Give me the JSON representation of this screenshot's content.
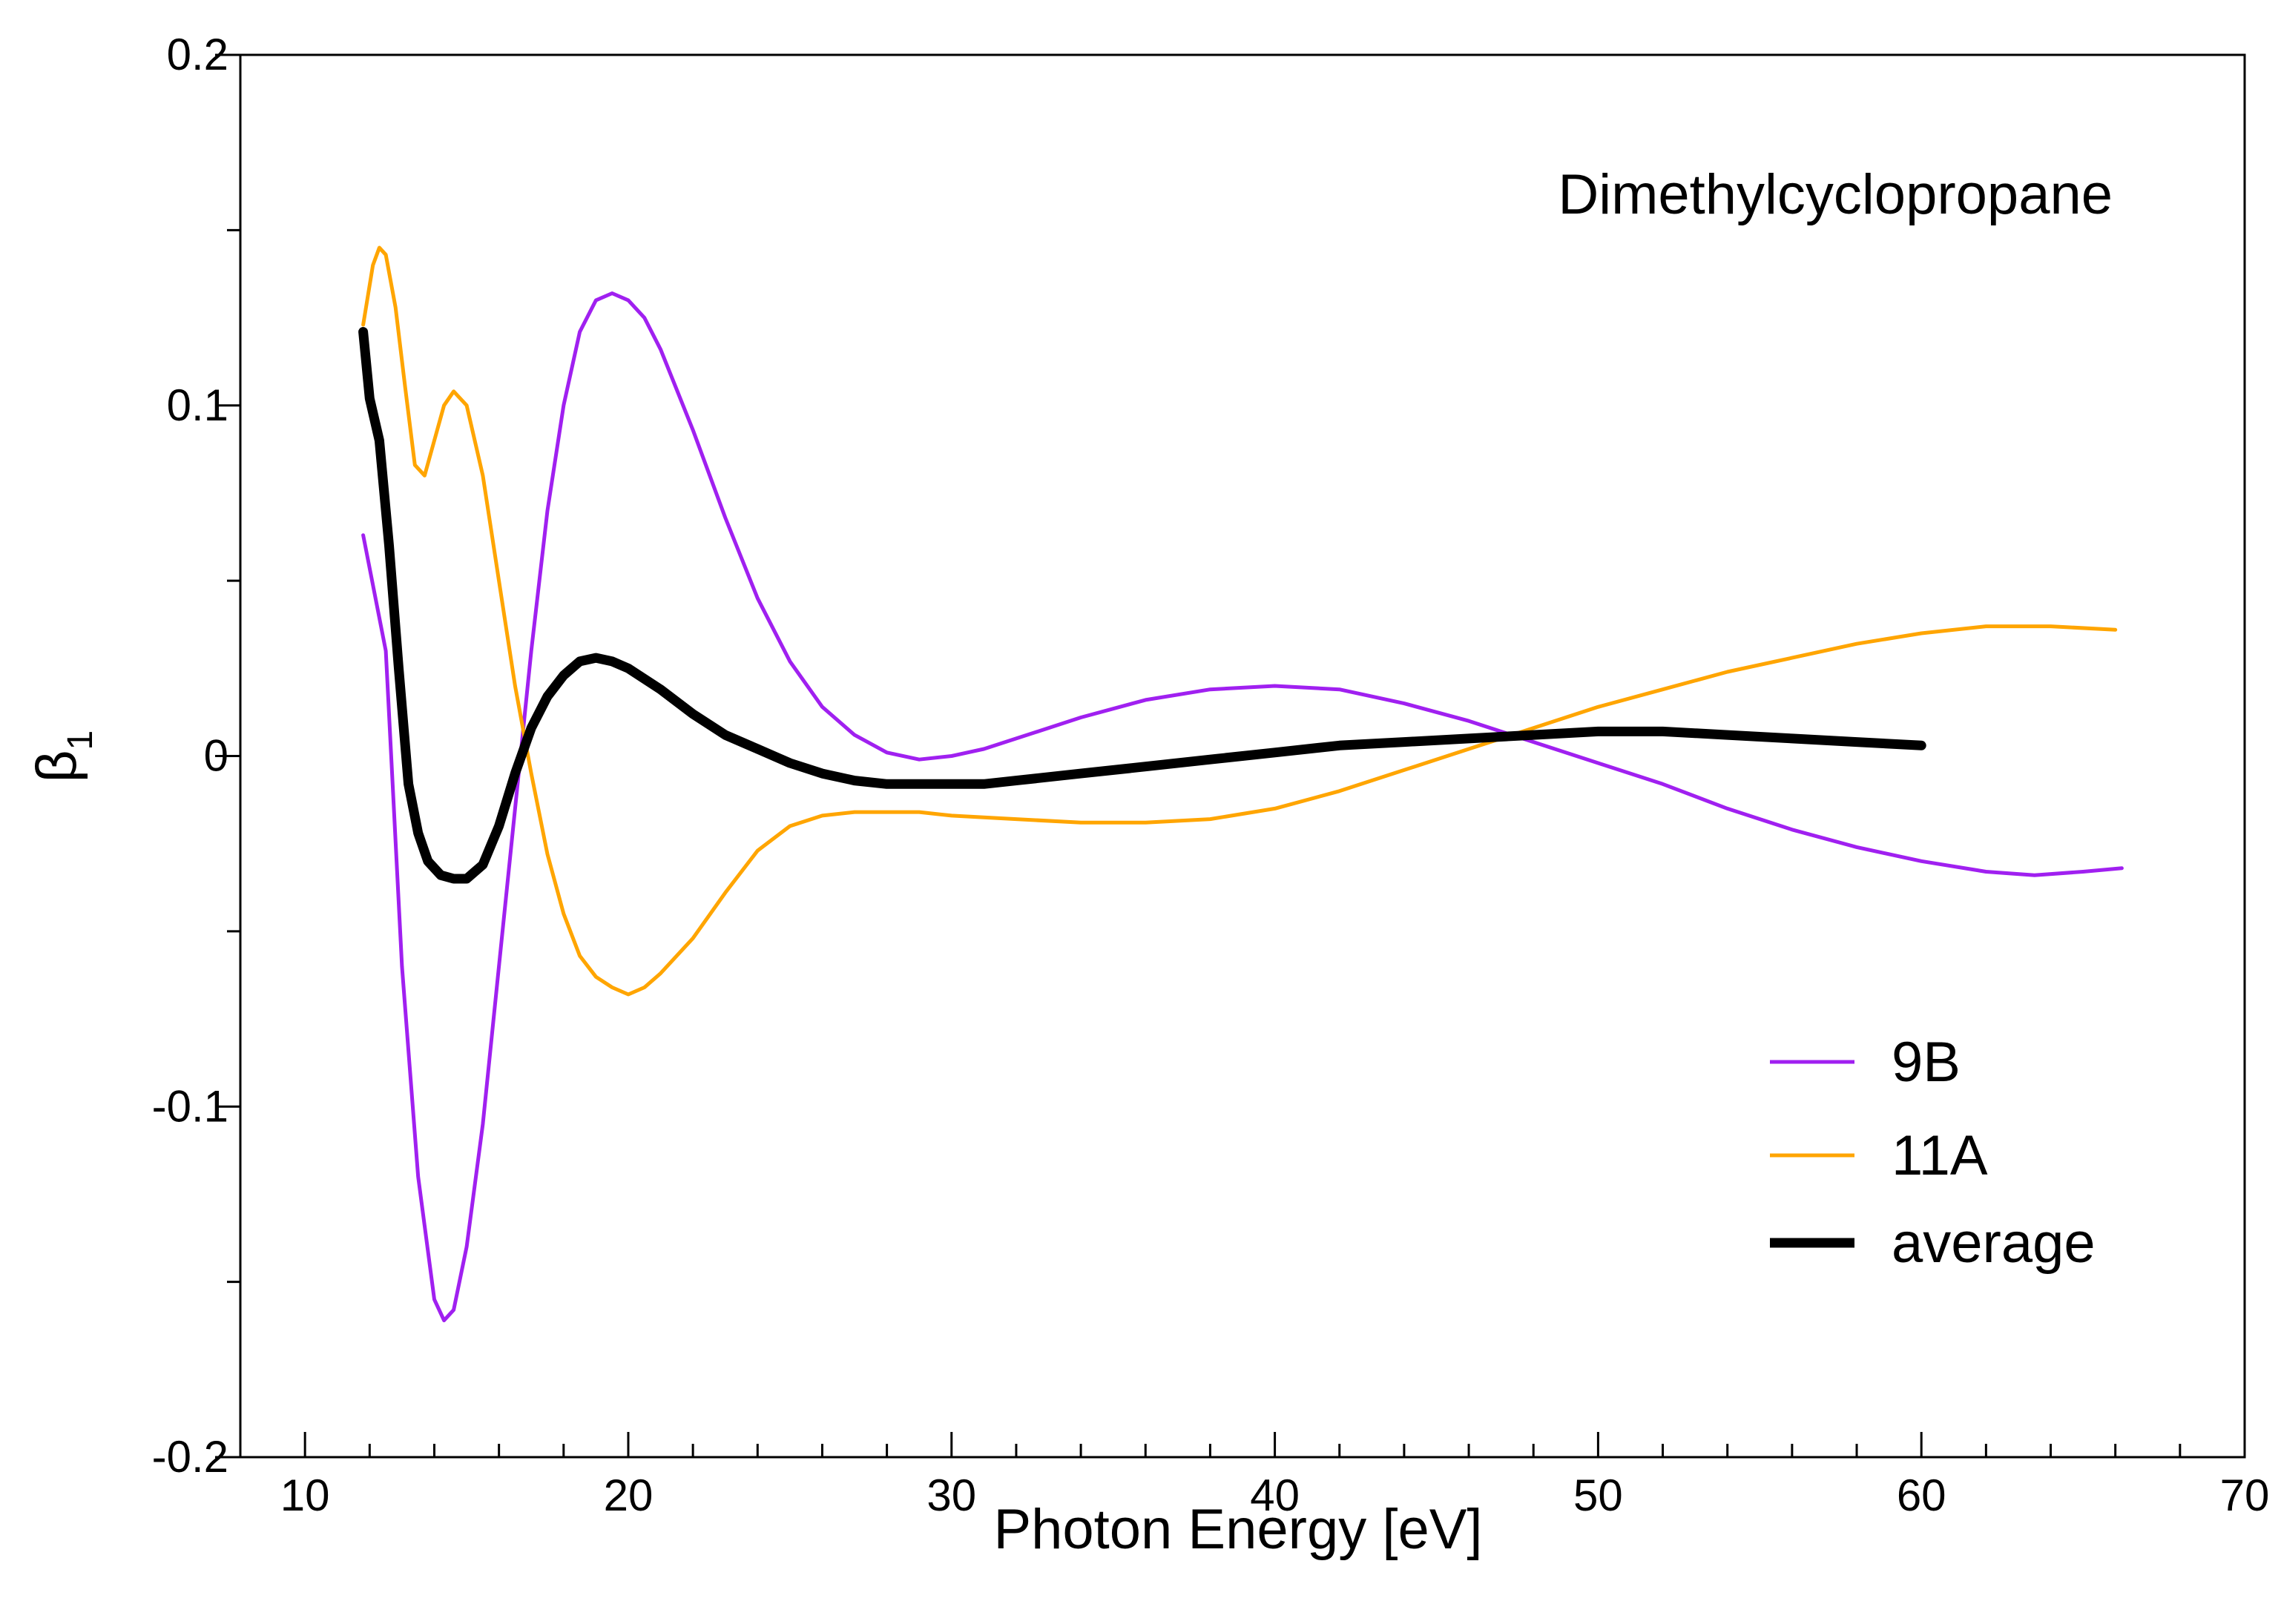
{
  "chart_data": {
    "type": "line",
    "title": "",
    "annotation": "Dimethylcyclopropane",
    "xlabel": "Photon Energy [eV]",
    "ylabel_base": "β",
    "ylabel_sub": "1",
    "xlim": [
      8,
      70
    ],
    "ylim": [
      -0.2,
      0.2
    ],
    "xticks": [
      10,
      20,
      30,
      40,
      50,
      60,
      70
    ],
    "xtick_labels": [
      "10",
      "20",
      "30",
      "40",
      "50",
      "60",
      "70"
    ],
    "xminor_step": 2,
    "yticks": [
      -0.2,
      -0.1,
      0,
      0.1,
      0.2
    ],
    "ytick_labels": [
      "-0.2",
      "-0.1",
      "0",
      "0.1",
      "0.2"
    ],
    "yminor_step": 0.05,
    "grid": false,
    "legend_position": "bottom-right",
    "series": [
      {
        "name": "9B",
        "color": "#a020f0",
        "width": "thin",
        "x": [
          11.8,
          12.5,
          13.0,
          13.5,
          14.0,
          14.3,
          14.6,
          15.0,
          15.5,
          16.0,
          16.5,
          17.0,
          17.5,
          18.0,
          18.5,
          19.0,
          19.5,
          20.0,
          20.5,
          21.0,
          22.0,
          23.0,
          24.0,
          25.0,
          26.0,
          27.0,
          28.0,
          29.0,
          30.0,
          31.0,
          32.0,
          34.0,
          36.0,
          38.0,
          40.0,
          42.0,
          44.0,
          46.0,
          48.0,
          50.0,
          52.0,
          54.0,
          56.0,
          58.0,
          60.0,
          62.0,
          63.5,
          65.0,
          66.2
        ],
        "y": [
          0.063,
          0.03,
          -0.06,
          -0.12,
          -0.155,
          -0.161,
          -0.158,
          -0.14,
          -0.105,
          -0.06,
          -0.015,
          0.03,
          0.07,
          0.1,
          0.121,
          0.13,
          0.132,
          0.13,
          0.125,
          0.116,
          0.093,
          0.068,
          0.045,
          0.027,
          0.014,
          0.006,
          0.001,
          -0.001,
          0.0,
          0.002,
          0.005,
          0.011,
          0.016,
          0.019,
          0.02,
          0.019,
          0.015,
          0.01,
          0.004,
          -0.002,
          -0.008,
          -0.015,
          -0.021,
          -0.026,
          -0.03,
          -0.033,
          -0.034,
          -0.033,
          -0.032
        ]
      },
      {
        "name": "11A",
        "color": "#ffa500",
        "width": "thin",
        "x": [
          11.8,
          12.1,
          12.3,
          12.5,
          12.8,
          13.1,
          13.4,
          13.7,
          14.0,
          14.3,
          14.6,
          15.0,
          15.5,
          16.0,
          16.5,
          17.0,
          17.5,
          18.0,
          18.5,
          19.0,
          19.5,
          20.0,
          20.5,
          21.0,
          22.0,
          23.0,
          24.0,
          25.0,
          26.0,
          27.0,
          28.0,
          29.0,
          30.0,
          32.0,
          34.0,
          36.0,
          38.0,
          40.0,
          42.0,
          44.0,
          46.0,
          48.0,
          50.0,
          52.0,
          54.0,
          56.0,
          58.0,
          60.0,
          62.0,
          64.0,
          66.0
        ],
        "y": [
          0.123,
          0.14,
          0.145,
          0.143,
          0.128,
          0.105,
          0.083,
          0.08,
          0.09,
          0.1,
          0.104,
          0.1,
          0.08,
          0.05,
          0.02,
          -0.005,
          -0.028,
          -0.045,
          -0.057,
          -0.063,
          -0.066,
          -0.068,
          -0.066,
          -0.062,
          -0.052,
          -0.039,
          -0.027,
          -0.02,
          -0.017,
          -0.016,
          -0.016,
          -0.016,
          -0.017,
          -0.018,
          -0.019,
          -0.019,
          -0.018,
          -0.015,
          -0.01,
          -0.004,
          0.002,
          0.008,
          0.014,
          0.019,
          0.024,
          0.028,
          0.032,
          0.035,
          0.037,
          0.037,
          0.036
        ]
      },
      {
        "name": "average",
        "color": "#000000",
        "width": "thick",
        "x": [
          11.8,
          12.0,
          12.3,
          12.6,
          12.9,
          13.2,
          13.5,
          13.8,
          14.2,
          14.6,
          15.0,
          15.5,
          16.0,
          16.5,
          17.0,
          17.5,
          18.0,
          18.5,
          19.0,
          19.5,
          20.0,
          21.0,
          22.0,
          23.0,
          24.0,
          25.0,
          26.0,
          27.0,
          28.0,
          29.0,
          30.0,
          31.0,
          32.0,
          34.0,
          36.0,
          38.0,
          40.0,
          42.0,
          44.0,
          46.0,
          48.0,
          50.0,
          52.0,
          54.0,
          56.0,
          58.0,
          60.0
        ],
        "y": [
          0.121,
          0.102,
          0.09,
          0.06,
          0.025,
          -0.008,
          -0.022,
          -0.03,
          -0.034,
          -0.035,
          -0.035,
          -0.031,
          -0.02,
          -0.005,
          0.008,
          0.017,
          0.023,
          0.027,
          0.028,
          0.027,
          0.025,
          0.019,
          0.012,
          0.006,
          0.002,
          -0.002,
          -0.005,
          -0.007,
          -0.008,
          -0.008,
          -0.008,
          -0.008,
          -0.007,
          -0.005,
          -0.003,
          -0.001,
          0.001,
          0.003,
          0.004,
          0.005,
          0.006,
          0.007,
          0.007,
          0.006,
          0.005,
          0.004,
          0.003
        ]
      }
    ]
  }
}
